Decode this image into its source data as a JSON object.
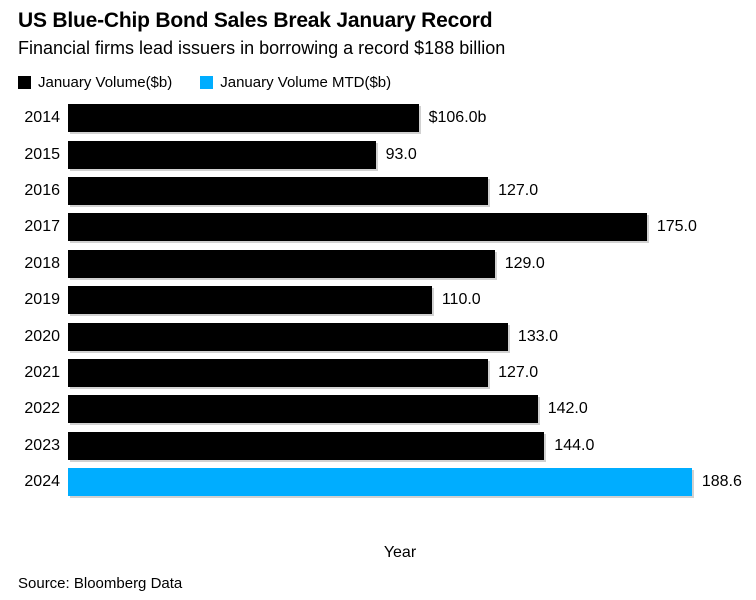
{
  "header": {
    "title": "US Blue-Chip Bond Sales Break January Record",
    "subtitle": "Financial firms lead issuers in borrowing a record $188 billion"
  },
  "legend": [
    {
      "label": "January Volume($b)",
      "color": "#000000"
    },
    {
      "label": "January Volume MTD($b)",
      "color": "#00ADFF"
    }
  ],
  "chart_data": {
    "type": "bar",
    "orientation": "horizontal",
    "title": "US Blue-Chip Bond Sales Break January Record",
    "subtitle": "Financial firms lead issuers in borrowing a record $188 billion",
    "categories": [
      "2014",
      "2015",
      "2016",
      "2017",
      "2018",
      "2019",
      "2020",
      "2021",
      "2022",
      "2023",
      "2024"
    ],
    "series": [
      {
        "name": "January Volume($b)",
        "values": [
          106.0,
          93.0,
          127.0,
          175.0,
          129.0,
          110.0,
          133.0,
          127.0,
          142.0,
          144.0,
          null
        ]
      },
      {
        "name": "January Volume MTD($b)",
        "values": [
          null,
          null,
          null,
          null,
          null,
          null,
          null,
          null,
          null,
          null,
          188.6
        ]
      }
    ],
    "values": [
      106.0,
      93.0,
      127.0,
      175.0,
      129.0,
      110.0,
      133.0,
      127.0,
      142.0,
      144.0,
      188.6
    ],
    "value_labels": [
      "$106.0b",
      "93.0",
      "127.0",
      "175.0",
      "129.0",
      "110.0",
      "133.0",
      "127.0",
      "142.0",
      "144.0",
      "188.6"
    ],
    "bar_colors": [
      "#000000",
      "#000000",
      "#000000",
      "#000000",
      "#000000",
      "#000000",
      "#000000",
      "#000000",
      "#000000",
      "#000000",
      "#00ADFF"
    ],
    "xlabel": "Year",
    "ylabel": "",
    "xlim": [
      0,
      208
    ],
    "grid": false,
    "legend_position": "top-left"
  },
  "footer": {
    "source": "Source: Bloomberg Data"
  }
}
